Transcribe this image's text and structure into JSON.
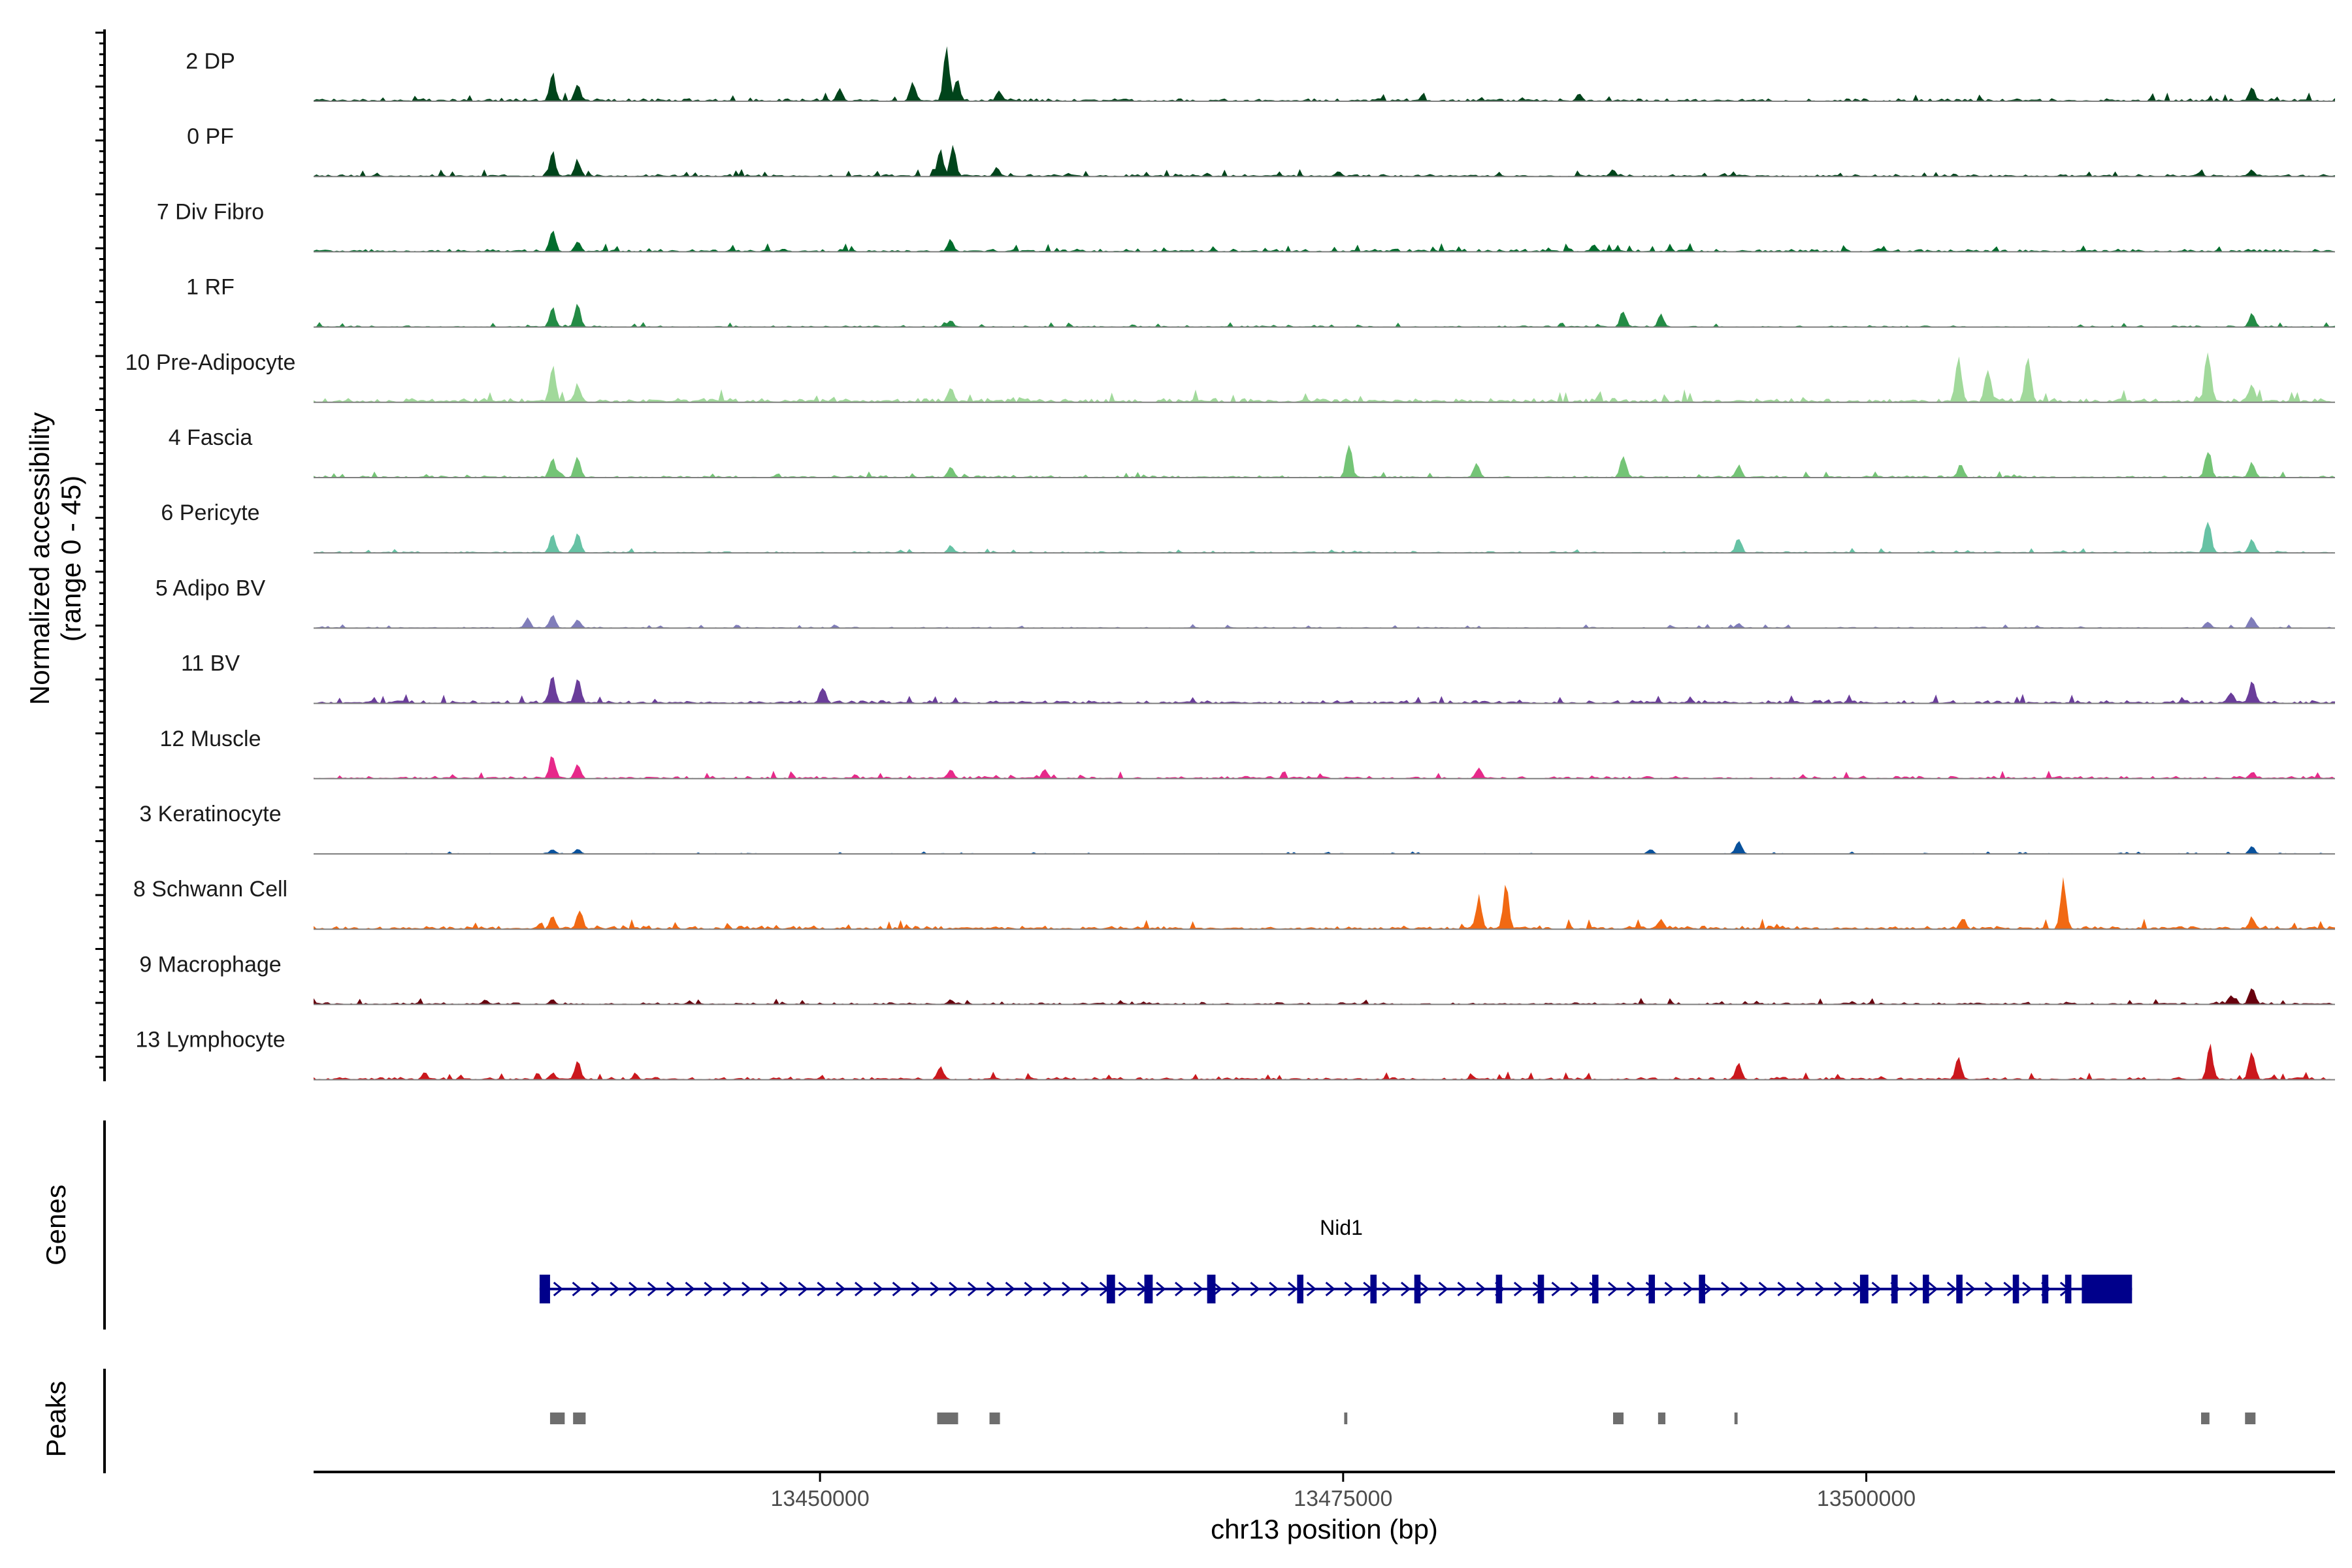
{
  "chart_data": {
    "type": "area",
    "title": "",
    "chromosome": "chr13",
    "xlabel": "chr13 position (bp)",
    "ylabel": "Normalized accessibility",
    "ylabel_range": "(range 0 - 45)",
    "ylim": [
      0,
      45
    ],
    "xlim": [
      13425800,
      13522400
    ],
    "x_ticks": [
      13450000,
      13475000,
      13500000
    ],
    "x_tick_labels": [
      "13450000",
      "13475000",
      "13500000"
    ],
    "tracks": [
      {
        "name": "2 DP",
        "color": "#00441b",
        "peaks": [
          [
            13437200,
            24
          ],
          [
            13438400,
            14
          ],
          [
            13450900,
            10
          ],
          [
            13454400,
            16
          ],
          [
            13456000,
            42
          ],
          [
            13456500,
            20
          ],
          [
            13458500,
            8
          ],
          [
            13486200,
            6
          ],
          [
            13518300,
            12
          ]
        ],
        "noise": 2.2
      },
      {
        "name": "0 PF",
        "color": "#00441b",
        "peaks": [
          [
            13437200,
            20
          ],
          [
            13438400,
            14
          ],
          [
            13455700,
            22
          ],
          [
            13456300,
            26
          ],
          [
            13458400,
            8
          ],
          [
            13474700,
            5
          ],
          [
            13487800,
            6
          ],
          [
            13518300,
            6
          ]
        ],
        "noise": 1.8
      },
      {
        "name": "7 Div Fibro",
        "color": "#006d2c",
        "peaks": [
          [
            13437200,
            18
          ],
          [
            13438400,
            10
          ],
          [
            13456200,
            10
          ],
          [
            13486900,
            6
          ]
        ],
        "noise": 2.2
      },
      {
        "name": "1 RF",
        "color": "#238b45",
        "peaks": [
          [
            13437200,
            16
          ],
          [
            13438400,
            18
          ],
          [
            13456200,
            6
          ],
          [
            13488300,
            14
          ],
          [
            13490100,
            10
          ],
          [
            13518300,
            12
          ]
        ],
        "noise": 1.2
      },
      {
        "name": "10 Pre-Adipocyte",
        "color": "#a1d99b",
        "peaks": [
          [
            13437200,
            30
          ],
          [
            13438400,
            16
          ],
          [
            13456200,
            14
          ],
          [
            13504300,
            40
          ],
          [
            13505700,
            30
          ],
          [
            13507600,
            42
          ],
          [
            13516200,
            44
          ],
          [
            13518300,
            16
          ]
        ],
        "noise": 3.2
      },
      {
        "name": "4 Fascia",
        "color": "#74c476",
        "peaks": [
          [
            13437200,
            18
          ],
          [
            13438400,
            18
          ],
          [
            13456200,
            10
          ],
          [
            13475200,
            30
          ],
          [
            13481300,
            12
          ],
          [
            13488300,
            18
          ],
          [
            13493800,
            10
          ],
          [
            13504400,
            12
          ],
          [
            13516200,
            24
          ],
          [
            13518300,
            14
          ]
        ],
        "noise": 1.6
      },
      {
        "name": "6 Pericyte",
        "color": "#66c2a4",
        "peaks": [
          [
            13437200,
            16
          ],
          [
            13438400,
            18
          ],
          [
            13456200,
            6
          ],
          [
            13493800,
            12
          ],
          [
            13516200,
            30
          ],
          [
            13518300,
            12
          ]
        ],
        "noise": 1.2
      },
      {
        "name": "5 Adipo BV",
        "color": "#807dba",
        "peaks": [
          [
            13436000,
            8
          ],
          [
            13437200,
            12
          ],
          [
            13438400,
            8
          ],
          [
            13493800,
            4
          ],
          [
            13516200,
            6
          ],
          [
            13518300,
            10
          ]
        ],
        "noise": 1.0
      },
      {
        "name": "11 BV",
        "color": "#6a3d9a",
        "peaks": [
          [
            13437200,
            24
          ],
          [
            13438400,
            22
          ],
          [
            13450100,
            14
          ],
          [
            13517300,
            10
          ],
          [
            13518300,
            20
          ]
        ],
        "noise": 2.4
      },
      {
        "name": "12 Muscle",
        "color": "#e7298a",
        "peaks": [
          [
            13437200,
            20
          ],
          [
            13438400,
            12
          ],
          [
            13456200,
            8
          ],
          [
            13460700,
            8
          ],
          [
            13481400,
            10
          ],
          [
            13518300,
            6
          ]
        ],
        "noise": 2.0
      },
      {
        "name": "3 Keratinocyte",
        "color": "#08519c",
        "peaks": [
          [
            13437200,
            4
          ],
          [
            13438400,
            4
          ],
          [
            13493800,
            12
          ],
          [
            13489600,
            4
          ],
          [
            13518300,
            6
          ]
        ],
        "noise": 0.6
      },
      {
        "name": "8 Schwann Cell",
        "color": "#f16913",
        "peaks": [
          [
            13437200,
            10
          ],
          [
            13438500,
            18
          ],
          [
            13481400,
            26
          ],
          [
            13482700,
            34
          ],
          [
            13490100,
            8
          ],
          [
            13504500,
            10
          ],
          [
            13509300,
            38
          ],
          [
            13518300,
            10
          ]
        ],
        "noise": 2.6
      },
      {
        "name": "9 Macrophage",
        "color": "#67000d",
        "peaks": [
          [
            13434000,
            4
          ],
          [
            13437200,
            4
          ],
          [
            13456200,
            4
          ],
          [
            13517300,
            8
          ],
          [
            13518300,
            16
          ]
        ],
        "noise": 1.6
      },
      {
        "name": "13 Lymphocyte",
        "color": "#cb181d",
        "peaks": [
          [
            13431100,
            6
          ],
          [
            13437200,
            6
          ],
          [
            13438400,
            16
          ],
          [
            13455700,
            12
          ],
          [
            13493800,
            14
          ],
          [
            13504300,
            18
          ],
          [
            13516300,
            28
          ],
          [
            13518300,
            24
          ]
        ],
        "noise": 2.0
      }
    ],
    "gene": {
      "name": "Nid1",
      "strand": "+",
      "start": 13436600,
      "end": 13512700,
      "exons": [
        [
          13436600,
          13437100
        ],
        [
          13463700,
          13464100
        ],
        [
          13465500,
          13465900
        ],
        [
          13468500,
          13468900
        ],
        [
          13472800,
          13473100
        ],
        [
          13476300,
          13476600
        ],
        [
          13478400,
          13478700
        ],
        [
          13482300,
          13482600
        ],
        [
          13484300,
          13484600
        ],
        [
          13486900,
          13487200
        ],
        [
          13489600,
          13489900
        ],
        [
          13492000,
          13492300
        ],
        [
          13499700,
          13500100
        ],
        [
          13501200,
          13501500
        ],
        [
          13502700,
          13503000
        ],
        [
          13504300,
          13504600
        ],
        [
          13507000,
          13507300
        ],
        [
          13508400,
          13508700
        ],
        [
          13509500,
          13509800
        ],
        [
          13510300,
          13512700
        ]
      ],
      "cds_end": 13510300
    },
    "peaks_track": [
      [
        13437100,
        13437800
      ],
      [
        13438200,
        13438800
      ],
      [
        13455600,
        13456600
      ],
      [
        13458100,
        13458600
      ],
      [
        13475050,
        13475200
      ],
      [
        13487900,
        13488400
      ],
      [
        13490050,
        13490400
      ],
      [
        13493700,
        13493850
      ],
      [
        13516000,
        13516400
      ],
      [
        13518100,
        13518600
      ]
    ],
    "sections": {
      "genes": "Genes",
      "peaks": "Peaks"
    }
  }
}
